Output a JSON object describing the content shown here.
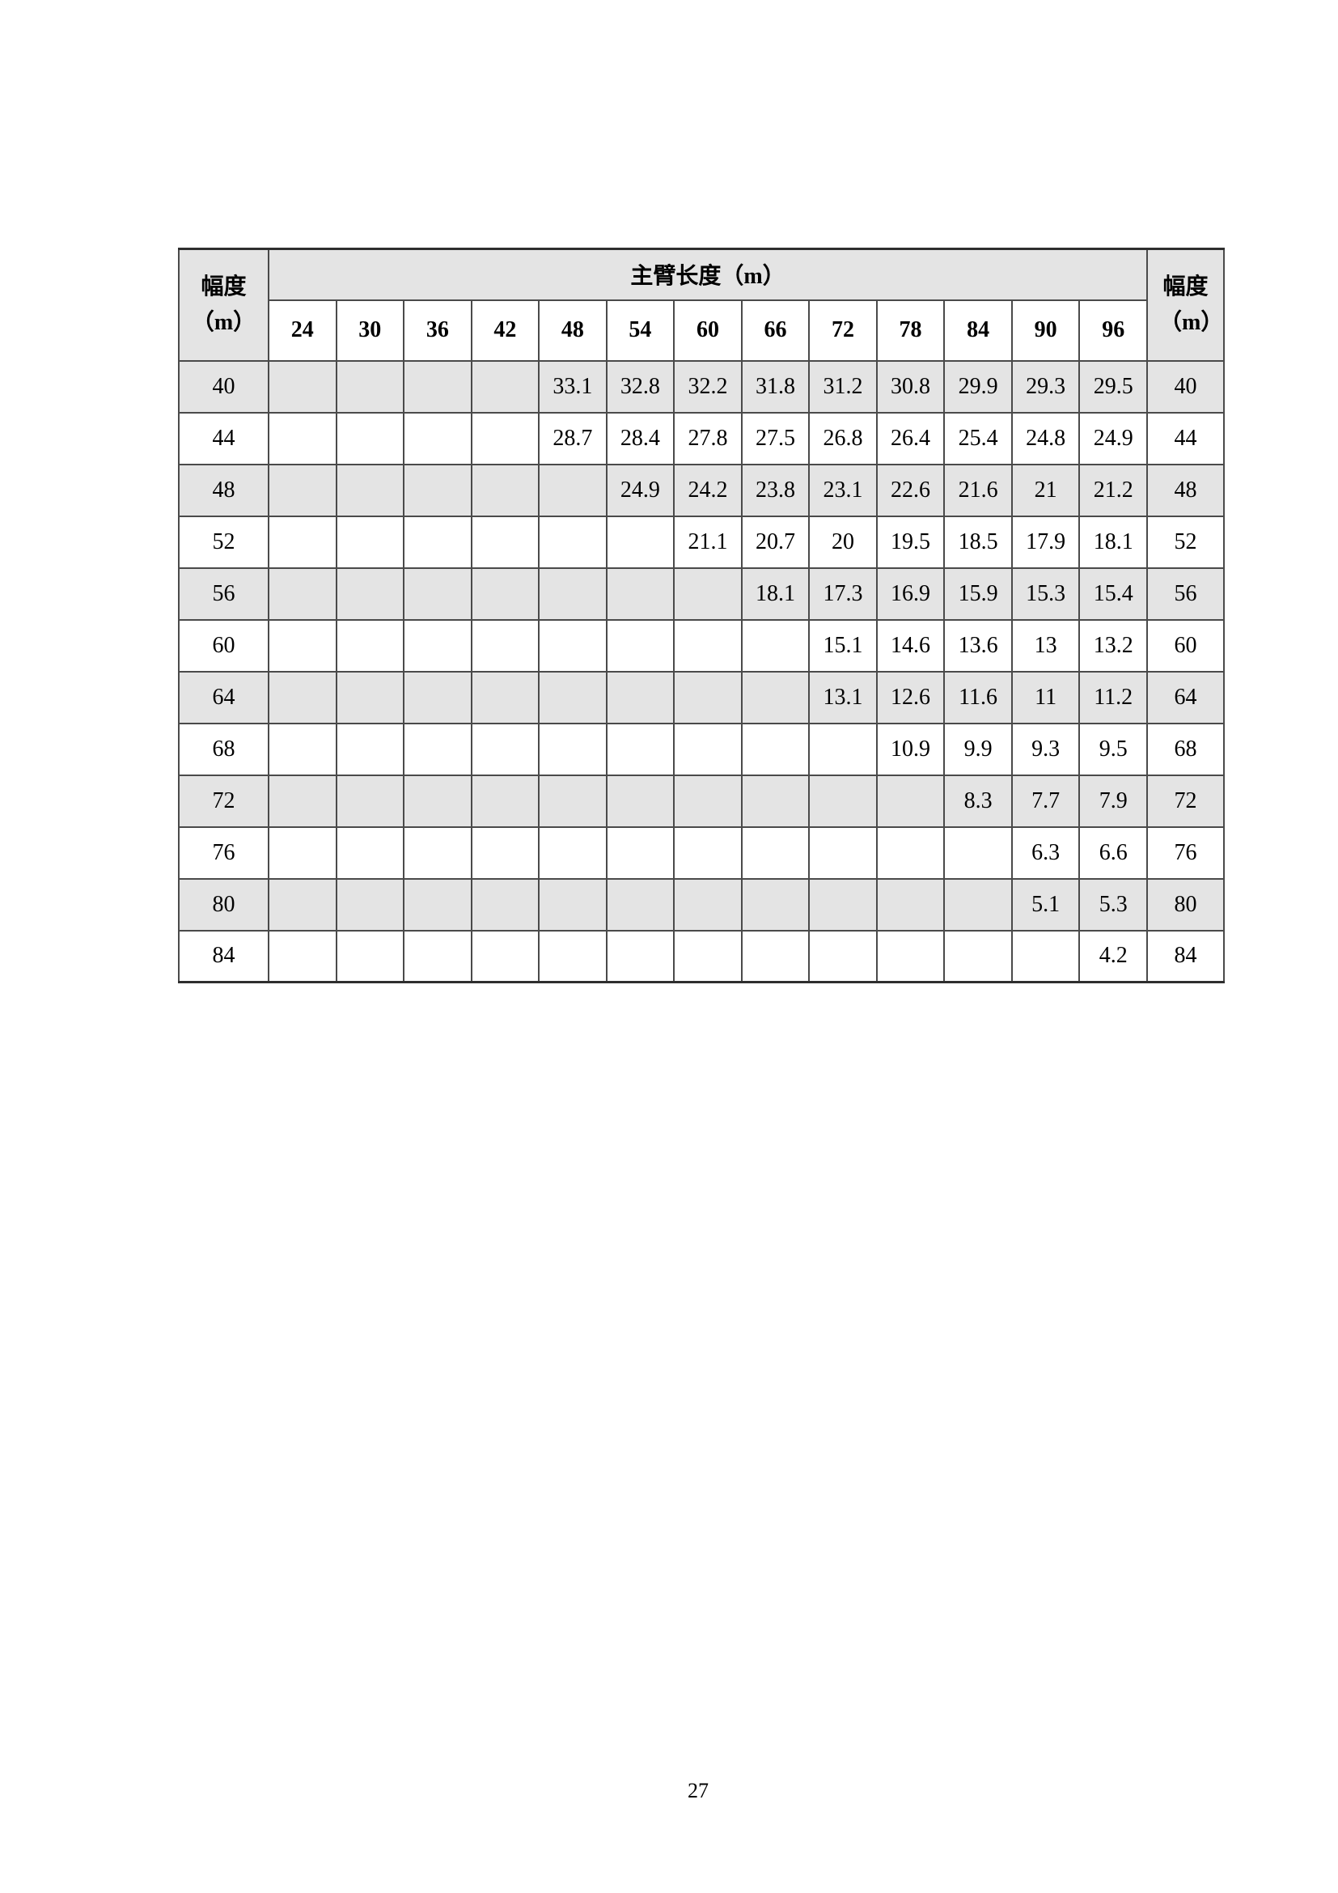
{
  "page": {
    "number": "27"
  },
  "table": {
    "left_corner_label": "幅度（m）",
    "right_corner_label": "幅度（m）",
    "boom_header": "主臂长度（m）",
    "boom_lengths": [
      "24",
      "30",
      "36",
      "42",
      "48",
      "54",
      "60",
      "66",
      "72",
      "78",
      "84",
      "90",
      "96"
    ],
    "rows": [
      {
        "radius": "40",
        "values": [
          "",
          "",
          "",
          "",
          "33.1",
          "32.8",
          "32.2",
          "31.8",
          "31.2",
          "30.8",
          "29.9",
          "29.3",
          "29.5"
        ]
      },
      {
        "radius": "44",
        "values": [
          "",
          "",
          "",
          "",
          "28.7",
          "28.4",
          "27.8",
          "27.5",
          "26.8",
          "26.4",
          "25.4",
          "24.8",
          "24.9"
        ]
      },
      {
        "radius": "48",
        "values": [
          "",
          "",
          "",
          "",
          "",
          "24.9",
          "24.2",
          "23.8",
          "23.1",
          "22.6",
          "21.6",
          "21",
          "21.2"
        ]
      },
      {
        "radius": "52",
        "values": [
          "",
          "",
          "",
          "",
          "",
          "",
          "21.1",
          "20.7",
          "20",
          "19.5",
          "18.5",
          "17.9",
          "18.1"
        ]
      },
      {
        "radius": "56",
        "values": [
          "",
          "",
          "",
          "",
          "",
          "",
          "",
          "18.1",
          "17.3",
          "16.9",
          "15.9",
          "15.3",
          "15.4"
        ]
      },
      {
        "radius": "60",
        "values": [
          "",
          "",
          "",
          "",
          "",
          "",
          "",
          "",
          "15.1",
          "14.6",
          "13.6",
          "13",
          "13.2"
        ]
      },
      {
        "radius": "64",
        "values": [
          "",
          "",
          "",
          "",
          "",
          "",
          "",
          "",
          "13.1",
          "12.6",
          "11.6",
          "11",
          "11.2"
        ]
      },
      {
        "radius": "68",
        "values": [
          "",
          "",
          "",
          "",
          "",
          "",
          "",
          "",
          "",
          "10.9",
          "9.9",
          "9.3",
          "9.5"
        ]
      },
      {
        "radius": "72",
        "values": [
          "",
          "",
          "",
          "",
          "",
          "",
          "",
          "",
          "",
          "",
          "8.3",
          "7.7",
          "7.9"
        ]
      },
      {
        "radius": "76",
        "values": [
          "",
          "",
          "",
          "",
          "",
          "",
          "",
          "",
          "",
          "",
          "",
          "6.3",
          "6.6"
        ]
      },
      {
        "radius": "80",
        "values": [
          "",
          "",
          "",
          "",
          "",
          "",
          "",
          "",
          "",
          "",
          "",
          "5.1",
          "5.3"
        ]
      },
      {
        "radius": "84",
        "values": [
          "",
          "",
          "",
          "",
          "",
          "",
          "",
          "",
          "",
          "",
          "",
          "",
          "4.2"
        ]
      }
    ]
  },
  "colors": {
    "row_shade": "#e4e4e4",
    "border": "#4a4a4a",
    "border_strong": "#2e2e2e"
  }
}
